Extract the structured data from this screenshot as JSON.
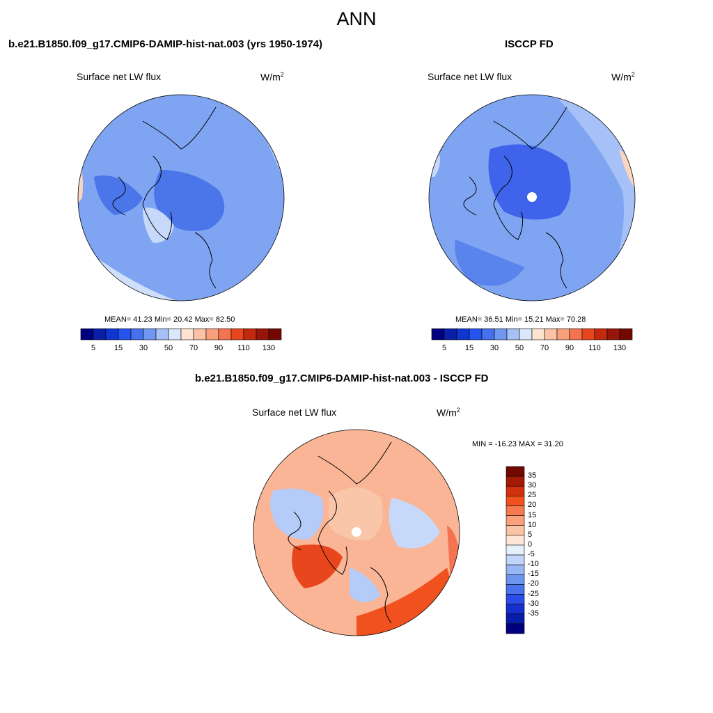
{
  "title": "ANN",
  "panels": [
    {
      "id": "model",
      "title": "b.e21.B1850.f09_g17.CMIP6-DAMIP-hist-nat.003 (yrs 1950-1974)",
      "variable": "Surface net LW flux",
      "units": "W/m",
      "units_sup": "2",
      "stats": "MEAN=  41.23  Min=  20.42  Max=  82.50",
      "base_color": "#6f9cf0"
    },
    {
      "id": "obs",
      "title": "ISCCP FD",
      "variable": "Surface net LW flux",
      "units": "W/m",
      "units_sup": "2",
      "stats": "MEAN=  36.51  Min=  15.21  Max=  70.28",
      "base_color": "#6f9cf0"
    }
  ],
  "abs_colorbar": {
    "colors": [
      "#00007f",
      "#0a1fa8",
      "#1036d1",
      "#2453ee",
      "#4570ee",
      "#7297f0",
      "#a6c1f7",
      "#dbe8fb",
      "#fde4d2",
      "#fbc2a5",
      "#f89f7b",
      "#f47451",
      "#e8471d",
      "#c32a0d",
      "#981609",
      "#730800"
    ],
    "labels": [
      "5",
      "15",
      "30",
      "50",
      "70",
      "90",
      "110",
      "130"
    ]
  },
  "difference": {
    "title": "b.e21.B1850.f09_g17.CMIP6-DAMIP-hist-nat.003 - ISCCP FD",
    "variable": "Surface net LW flux",
    "units": "W/m",
    "units_sup": "2",
    "stats": "MIN = -16.23 MAX =  31.20",
    "colorbar": {
      "colors": [
        "#730800",
        "#a51a06",
        "#d23110",
        "#f0511e",
        "#f57a4f",
        "#f9a07d",
        "#fcc4a6",
        "#fde6d7",
        "#e6f0fd",
        "#c1d6fa",
        "#99b7f5",
        "#6e95ee",
        "#4a72ec",
        "#2a4cea",
        "#1530cc",
        "#0a1da8",
        "#00007f"
      ],
      "labels": [
        "35",
        "30",
        "25",
        "20",
        "15",
        "10",
        "5",
        "0",
        "-5",
        "-10",
        "-15",
        "-20",
        "-25",
        "-30",
        "-35"
      ]
    }
  }
}
